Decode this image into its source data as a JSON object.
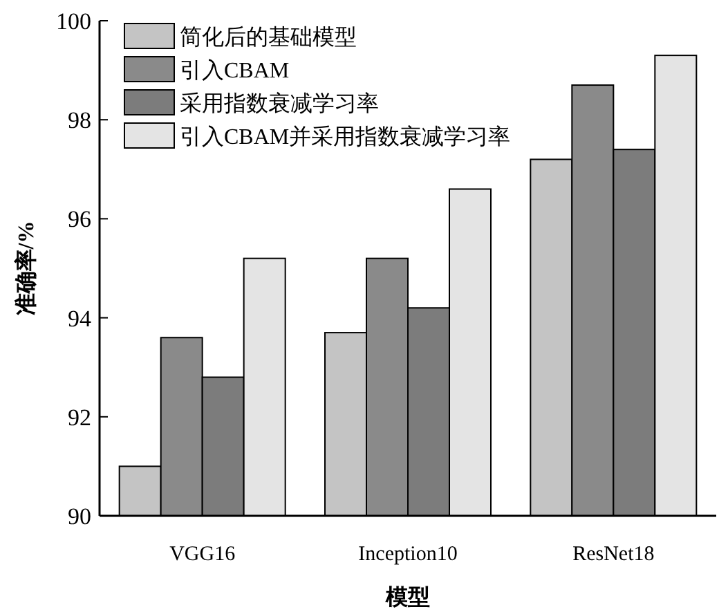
{
  "chart_data": {
    "type": "bar",
    "xlabel": "模型",
    "ylabel": "准确率/%",
    "categories": [
      "VGG16",
      "Inception10",
      "ResNet18"
    ],
    "series": [
      {
        "name": "简化后的基础模型",
        "color": "#c4c4c4",
        "values": [
          91.0,
          93.7,
          97.2
        ]
      },
      {
        "name": "引入CBAM",
        "color": "#8a8a8a",
        "values": [
          93.6,
          95.2,
          98.7
        ]
      },
      {
        "name": "采用指数衰减学习率",
        "color": "#7c7c7c",
        "values": [
          92.8,
          94.2,
          97.4
        ]
      },
      {
        "name": "引入CBAM并采用指数衰减学习率",
        "color": "#e4e4e4",
        "values": [
          95.2,
          96.6,
          99.3
        ]
      }
    ],
    "ylim": [
      90,
      100
    ],
    "yticks": [
      90,
      92,
      94,
      96,
      98,
      100
    ],
    "legend": "top left",
    "grid": false
  }
}
